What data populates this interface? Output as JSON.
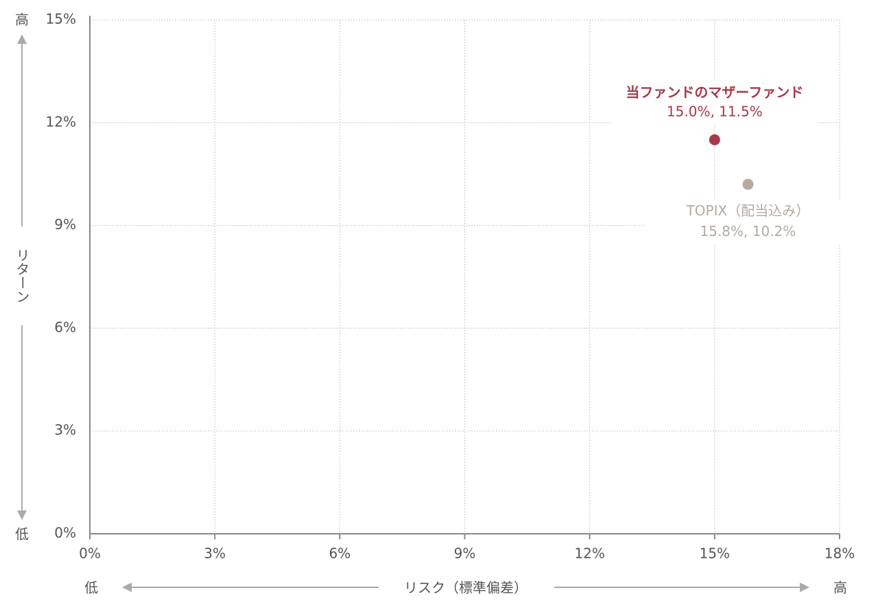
{
  "chart_data": {
    "type": "scatter",
    "x_axis_label": "リスク（標準偏差）",
    "y_axis_label": "リターン",
    "x_low_label": "低",
    "x_high_label": "高",
    "y_low_label": "低",
    "y_high_label": "高",
    "series": [
      {
        "name": "当ファンドのマザーファンド",
        "color": "#a63a48",
        "x": [
          15.0
        ],
        "values": [
          11.5
        ],
        "value_labels": [
          "15.0%, 11.5%"
        ]
      },
      {
        "name": "TOPIX（配当込み）",
        "color": "#b5aaa0",
        "x": [
          15.8
        ],
        "values": [
          10.2
        ],
        "value_labels": [
          "15.8%, 10.2%"
        ]
      }
    ],
    "xlim": [
      0,
      18
    ],
    "xticks": [
      {
        "value": 0,
        "label": "0%"
      },
      {
        "value": 3,
        "label": "3%"
      },
      {
        "value": 6,
        "label": "6%"
      },
      {
        "value": 9,
        "label": "9%"
      },
      {
        "value": 12,
        "label": "12%"
      },
      {
        "value": 15,
        "label": "15%"
      },
      {
        "value": 18,
        "label": "18%"
      }
    ],
    "ylim": [
      0,
      15
    ],
    "yticks": [
      {
        "value": 0,
        "label": "0%"
      },
      {
        "value": 3,
        "label": "3%"
      },
      {
        "value": 6,
        "label": "6%"
      },
      {
        "value": 9,
        "label": "9%"
      },
      {
        "value": 12,
        "label": "12%"
      },
      {
        "value": 15,
        "label": "15%"
      }
    ],
    "grid": true
  }
}
